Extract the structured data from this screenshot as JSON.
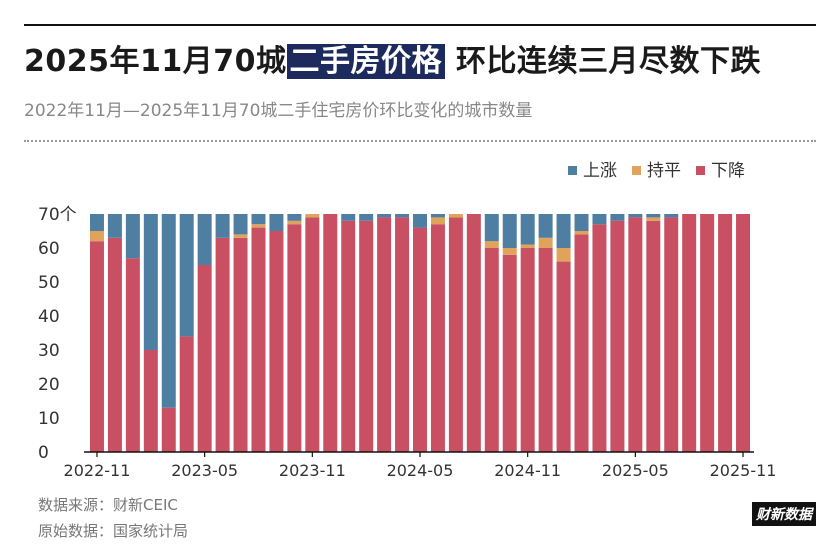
{
  "header": {
    "title_prefix": "2025年11月70城",
    "title_highlight": "二手房价格",
    "title_suffix": " 环比连续三月尽数下跌",
    "subtitle": "2022年11月—2025年11月70城二手住宅房价环比变化的城市数量"
  },
  "footer": {
    "source": "数据来源：财新CEIC",
    "raw": "原始数据：国家统计局",
    "logo": "财新数据"
  },
  "chart_data": {
    "type": "bar",
    "stacked": true,
    "categories": [
      "2022-11",
      "2022-12",
      "2023-01",
      "2023-02",
      "2023-03",
      "2023-04",
      "2023-05",
      "2023-06",
      "2023-07",
      "2023-08",
      "2023-09",
      "2023-10",
      "2023-11",
      "2023-12",
      "2024-01",
      "2024-02",
      "2024-03",
      "2024-04",
      "2024-05",
      "2024-06",
      "2024-07",
      "2024-08",
      "2024-09",
      "2024-10",
      "2024-11",
      "2024-12",
      "2025-01",
      "2025-02",
      "2025-03",
      "2025-04",
      "2025-05",
      "2025-06",
      "2025-07",
      "2025-08",
      "2025-09",
      "2025-10",
      "2025-11"
    ],
    "x_tick_labels": [
      "2022-11",
      "2023-05",
      "2023-11",
      "2024-05",
      "2024-11",
      "2025-05",
      "2025-11"
    ],
    "series": [
      {
        "name": "下降",
        "color": "#c94f63",
        "values": [
          62,
          63,
          57,
          30,
          13,
          34,
          55,
          63,
          63,
          66,
          65,
          67,
          69,
          70,
          68,
          68,
          69,
          69,
          66,
          67,
          69,
          70,
          60,
          58,
          60,
          60,
          56,
          64,
          67,
          68,
          69,
          68,
          69,
          70,
          70,
          70,
          70
        ]
      },
      {
        "name": "持平",
        "color": "#e0a35c",
        "values": [
          3,
          0,
          0,
          0,
          0,
          0,
          0,
          0,
          1,
          1,
          0,
          1,
          1,
          0,
          0,
          0,
          0,
          0,
          0,
          2,
          1,
          0,
          2,
          2,
          1,
          3,
          4,
          1,
          0,
          0,
          0,
          1,
          0,
          0,
          0,
          0,
          0
        ]
      },
      {
        "name": "上涨",
        "color": "#4f7ea3",
        "values": [
          5,
          7,
          13,
          40,
          57,
          36,
          15,
          7,
          6,
          3,
          5,
          2,
          0,
          0,
          2,
          2,
          1,
          1,
          4,
          1,
          0,
          0,
          8,
          10,
          9,
          7,
          10,
          5,
          3,
          2,
          1,
          1,
          1,
          0,
          0,
          0,
          0
        ]
      }
    ],
    "legend_order": [
      "上涨",
      "持平",
      "下降"
    ],
    "y_ticks": [
      "70个",
      "60",
      "50",
      "40",
      "30",
      "20",
      "10",
      "0"
    ],
    "ylim": [
      0,
      70
    ],
    "legend_position": "top-right",
    "grid": false
  }
}
